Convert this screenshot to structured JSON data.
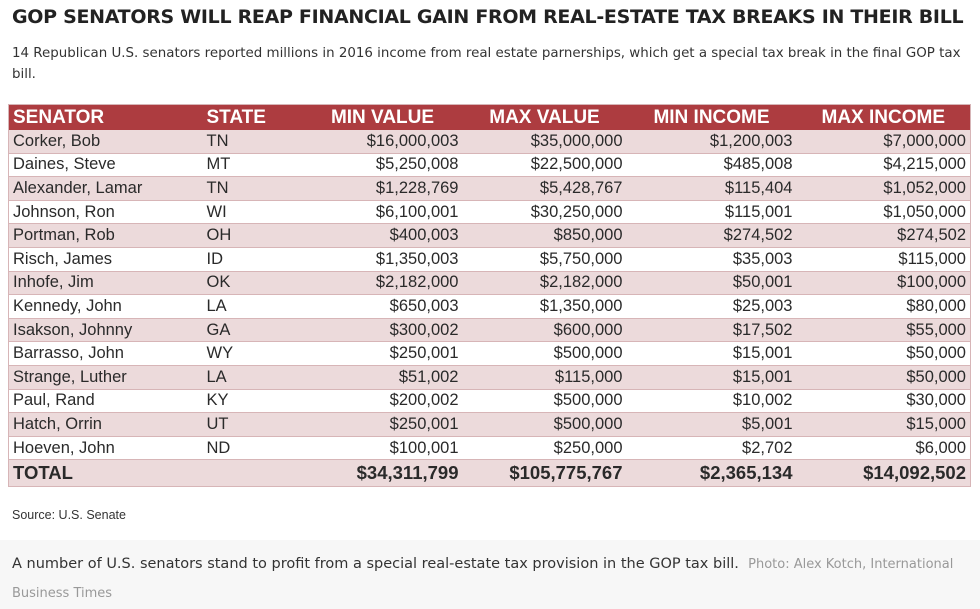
{
  "title": "GOP SENATORS WILL REAP FINANCIAL GAIN FROM REAL-ESTATE TAX BREAKS IN THEIR BILL",
  "subtitle": "14 Republican U.S. senators reported millions in 2016 income from real estate parnerships, which get a special tax break in the final GOP tax bill.",
  "colors": {
    "header": "#ad3c40",
    "row_alt": "#ecdadb"
  },
  "table": {
    "headers": [
      "SENATOR",
      "STATE",
      "MIN VALUE",
      "MAX VALUE",
      "MIN INCOME",
      "MAX INCOME"
    ],
    "rows": [
      [
        "Corker, Bob",
        "TN",
        "$16,000,003",
        "$35,000,000",
        "$1,200,003",
        "$7,000,000"
      ],
      [
        "Daines, Steve",
        "MT",
        "$5,250,008",
        "$22,500,000",
        "$485,008",
        "$4,215,000"
      ],
      [
        "Alexander, Lamar",
        "TN",
        "$1,228,769",
        "$5,428,767",
        "$115,404",
        "$1,052,000"
      ],
      [
        "Johnson, Ron",
        "WI",
        "$6,100,001",
        "$30,250,000",
        "$115,001",
        "$1,050,000"
      ],
      [
        "Portman, Rob",
        "OH",
        "$400,003",
        "$850,000",
        "$274,502",
        "$274,502"
      ],
      [
        "Risch, James",
        "ID",
        "$1,350,003",
        "$5,750,000",
        "$35,003",
        "$115,000"
      ],
      [
        "Inhofe, Jim",
        "OK",
        "$2,182,000",
        "$2,182,000",
        "$50,001",
        "$100,000"
      ],
      [
        "Kennedy, John",
        "LA",
        "$650,003",
        "$1,350,000",
        "$25,003",
        "$80,000"
      ],
      [
        "Isakson, Johnny",
        "GA",
        "$300,002",
        "$600,000",
        "$17,502",
        "$55,000"
      ],
      [
        "Barrasso, John",
        "WY",
        "$250,001",
        "$500,000",
        "$15,001",
        "$50,000"
      ],
      [
        "Strange, Luther",
        "LA",
        "$51,002",
        "$115,000",
        "$15,001",
        "$50,000"
      ],
      [
        "Paul, Rand",
        "KY",
        "$200,002",
        "$500,000",
        "$10,002",
        "$30,000"
      ],
      [
        "Hatch, Orrin",
        "UT",
        "$250,001",
        "$500,000",
        "$5,001",
        "$15,000"
      ],
      [
        "Hoeven, John",
        "ND",
        "$100,001",
        "$250,000",
        "$2,702",
        "$6,000"
      ]
    ],
    "total": [
      "TOTAL",
      "",
      "$34,311,799",
      "$105,775,767",
      "$2,365,134",
      "$14,092,502"
    ]
  },
  "source": "Source: U.S. Senate",
  "caption": {
    "text": "A number of U.S. senators stand to profit from a special real-estate tax provision in the GOP tax bill.",
    "credit": "Photo: Alex Kotch, International Business Times"
  }
}
